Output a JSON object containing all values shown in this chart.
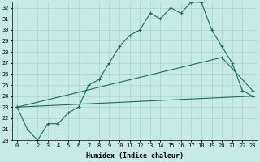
{
  "xlabel": "Humidex (Indice chaleur)",
  "ylabel": "",
  "xlim": [
    -0.5,
    23.5
  ],
  "ylim": [
    20,
    32.5
  ],
  "yticks": [
    20,
    21,
    22,
    23,
    24,
    25,
    26,
    27,
    28,
    29,
    30,
    31,
    32
  ],
  "xticks": [
    0,
    1,
    2,
    3,
    4,
    5,
    6,
    7,
    8,
    9,
    10,
    11,
    12,
    13,
    14,
    15,
    16,
    17,
    18,
    19,
    20,
    21,
    22,
    23
  ],
  "bg_color": "#c8eae4",
  "grid_color": "#a8d4cc",
  "line_color": "#1a6b5a",
  "line1_x": [
    0,
    1,
    2,
    3,
    4,
    5,
    6,
    7,
    8,
    9,
    10,
    11,
    12,
    13,
    14,
    15,
    16,
    17,
    18,
    19,
    20,
    21,
    22,
    23
  ],
  "line1_y": [
    23,
    21,
    20,
    21.5,
    21.5,
    22.5,
    23,
    25,
    25.5,
    27,
    28.5,
    29.5,
    30,
    31.5,
    31,
    32,
    31.5,
    32.5,
    32.5,
    30,
    28.5,
    27,
    24.5,
    24
  ],
  "line2_x": [
    0,
    23
  ],
  "line2_y": [
    23,
    24
  ],
  "line3_x": [
    0,
    20,
    23
  ],
  "line3_y": [
    23,
    27.5,
    24.5
  ],
  "marker": "+"
}
